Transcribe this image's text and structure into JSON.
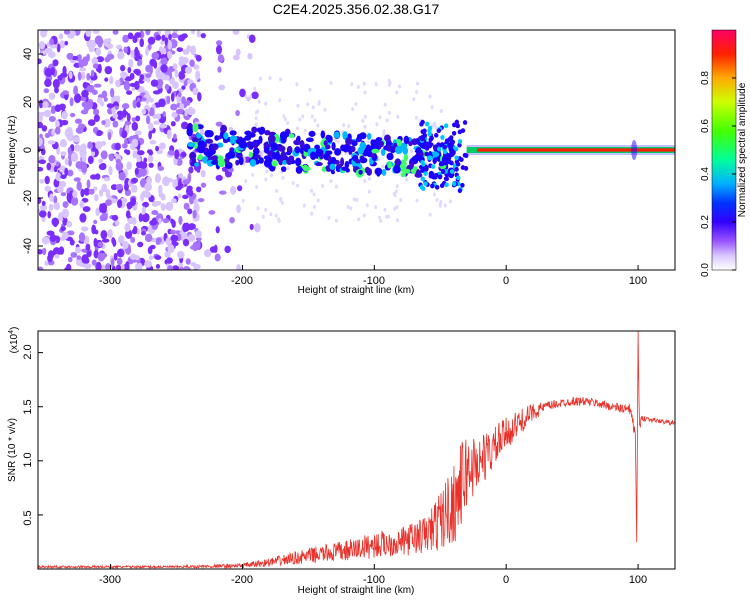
{
  "figure_title": "C2E4.2025.356.02.38.G17",
  "chart_data": [
    {
      "type": "heatmap",
      "title": "C2E4.2025.356.02.38.G17",
      "xlabel": "Height of straight line (km)",
      "ylabel": "Frequency (Hz)",
      "xlim": [
        -355,
        128
      ],
      "ylim": [
        -50,
        50
      ],
      "x_ticks": [
        -300,
        -200,
        -100,
        0,
        100
      ],
      "x_tick_labels": [
        "-300",
        "-200",
        "-100",
        "0",
        "100"
      ],
      "y_ticks": [
        -40,
        -20,
        0,
        20,
        40
      ],
      "y_tick_labels": [
        "-40",
        "-20",
        "0",
        "20",
        "40"
      ],
      "colorbar": {
        "label": "Normalized spectral amplitude",
        "range": [
          0,
          1
        ],
        "ticks": [
          0.0,
          0.2,
          0.4,
          0.6,
          0.8
        ],
        "tick_labels": [
          "0.0",
          "0.2",
          "0.4",
          "0.6",
          "0.8"
        ],
        "colors": [
          "#ffffff",
          "#b58cff",
          "#7a00ff",
          "#0000ff",
          "#00ccff",
          "#00ff44",
          "#ccff00",
          "#ff8800",
          "#ff0000",
          "#ff0066"
        ]
      },
      "regions": [
        {
          "name": "noise",
          "x_range": [
            -355,
            -185
          ],
          "freq_range": [
            -50,
            50
          ],
          "amplitude": 0.1
        },
        {
          "name": "scattered",
          "x_range": [
            -240,
            -40
          ],
          "freq_center": [
            2,
            -4
          ],
          "freq_spread": 8,
          "amplitude": 0.3
        },
        {
          "name": "transition",
          "x_range": [
            -65,
            -30
          ],
          "freq_range": [
            -18,
            12
          ],
          "amplitude": 0.25
        },
        {
          "name": "carrier",
          "x_range": [
            -30,
            128
          ],
          "freq_center": 0,
          "amplitude": 0.95
        }
      ]
    },
    {
      "type": "line",
      "xlabel": "Height of straight line (km)",
      "ylabel": "SNR (10 * v/v)",
      "y_scale_label": "(x10",
      "y_scale_exp": "4",
      "y_scale_close": ")",
      "xlim": [
        -355,
        128
      ],
      "ylim": [
        0,
        2.2
      ],
      "x_ticks": [
        -300,
        -200,
        -100,
        0,
        100
      ],
      "x_tick_labels": [
        "-300",
        "-200",
        "-100",
        "0",
        "100"
      ],
      "y_ticks": [
        0.5,
        1.0,
        1.5,
        2.0
      ],
      "y_tick_labels": [
        "0.5",
        "1.0",
        "1.5",
        "2.0"
      ],
      "series": [
        {
          "name": "SNR",
          "color": "#e8312a",
          "x": [
            -355,
            -300,
            -250,
            -200,
            -180,
            -160,
            -140,
            -120,
            -100,
            -80,
            -60,
            -50,
            -40,
            -35,
            -30,
            -25,
            -20,
            -15,
            -10,
            -5,
            0,
            10,
            20,
            30,
            40,
            50,
            60,
            70,
            80,
            90,
            95,
            98,
            99,
            100,
            101,
            103,
            110,
            120,
            128
          ],
          "values": [
            0.02,
            0.02,
            0.02,
            0.03,
            0.06,
            0.1,
            0.14,
            0.17,
            0.22,
            0.25,
            0.32,
            0.45,
            0.6,
            0.75,
            0.9,
            0.95,
            1.0,
            1.05,
            1.1,
            1.18,
            1.25,
            1.35,
            1.45,
            1.5,
            1.53,
            1.55,
            1.55,
            1.53,
            1.5,
            1.48,
            1.45,
            1.2,
            0.2,
            2.2,
            1.3,
            1.4,
            1.38,
            1.36,
            1.35
          ],
          "noise_amplitude": [
            0.01,
            0.01,
            0.01,
            0.02,
            0.04,
            0.06,
            0.08,
            0.1,
            0.12,
            0.13,
            0.18,
            0.28,
            0.38,
            0.4,
            0.35,
            0.3,
            0.25,
            0.22,
            0.2,
            0.18,
            0.15,
            0.12,
            0.08,
            0.05,
            0.04,
            0.04,
            0.04,
            0.04,
            0.04,
            0.05,
            0.08,
            0.05,
            0.0,
            0.0,
            0.05,
            0.03,
            0.02,
            0.02,
            0.02
          ]
        }
      ]
    }
  ]
}
